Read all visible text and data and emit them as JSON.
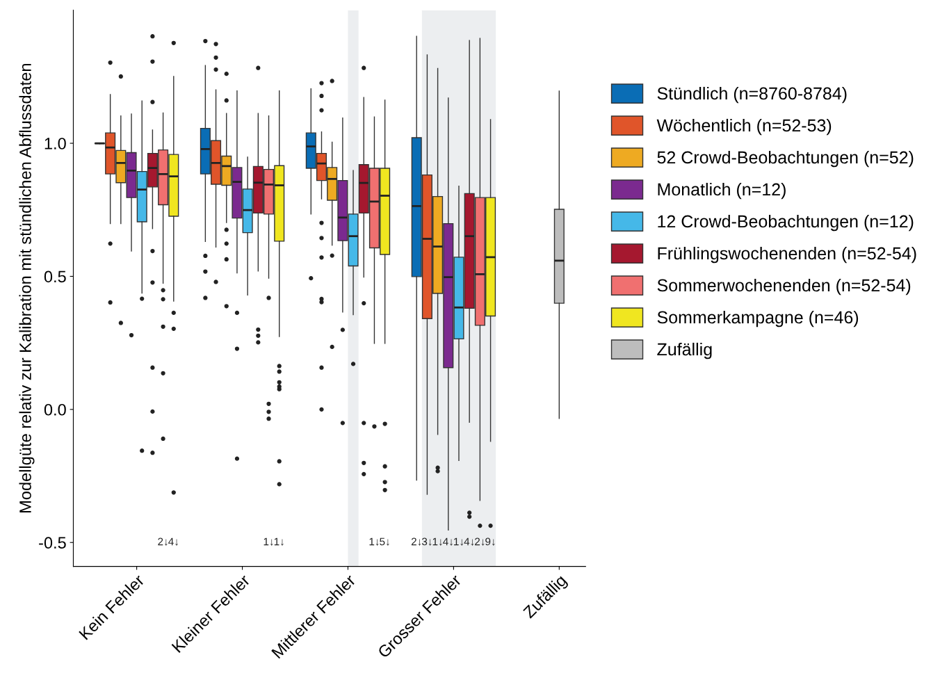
{
  "chart_data": {
    "type": "box",
    "ylabel": "Modellgüte relativ zur Kalibration mit stündlichen Abflussdaten",
    "categories": [
      "Kein Fehler",
      "Kleiner Fehler",
      "Mittlerer Fehler",
      "Grosser Fehler",
      "Zufällig"
    ],
    "ylim": [
      -0.59,
      1.5
    ],
    "yticks": [
      {
        "value": -0.5,
        "label": "-0.5"
      },
      {
        "value": 0,
        "label": "0.0"
      },
      {
        "value": 0.5,
        "label": "0.5"
      },
      {
        "value": 1,
        "label": "1.0"
      }
    ],
    "grid": false,
    "legend": "right",
    "series": [
      {
        "name": "Stündlich (n=8760-8784)",
        "color": "#0a6db5",
        "boxes": [
          {
            "low": 0.998,
            "q1": 0.999,
            "median": 1.0,
            "q3": 1.0,
            "high": 1.0
          },
          {
            "low": 0.631,
            "q1": 0.885,
            "median": 0.978,
            "q3": 1.056,
            "high": 1.292,
            "outliers": [
              1.384,
              0.577,
              0.518,
              0.419
            ]
          },
          {
            "low": 0.734,
            "q1": 0.906,
            "median": 0.988,
            "q3": 1.039,
            "high": 1.205,
            "outliers": [
              0.493
            ]
          },
          {
            "low": -0.266,
            "q1": 0.499,
            "median": 0.764,
            "q3": 1.021,
            "high": 1.402
          },
          null
        ],
        "value_labels": [
          null,
          null,
          null,
          "2↓",
          null
        ]
      },
      {
        "name": "Wöchentlich (n=52-53)",
        "color": "#e0552a",
        "boxes": [
          {
            "low": 0.698,
            "q1": 0.885,
            "median": 0.984,
            "q3": 1.039,
            "high": 1.183,
            "outliers": [
              1.303,
              0.623,
              0.402
            ]
          },
          {
            "low": 0.61,
            "q1": 0.846,
            "median": 0.926,
            "q3": 1.01,
            "high": 1.201,
            "outliers": [
              1.373,
              1.322,
              1.277,
              0.479
            ]
          },
          {
            "low": 0.791,
            "q1": 0.86,
            "median": 0.924,
            "q3": 0.962,
            "high": 1.043,
            "outliers": [
              1.226,
              1.178,
              1.124,
              0.701,
              0.644,
              0.571,
              0.415,
              0.403,
              0.157,
              0.0
            ]
          },
          {
            "low": -0.319,
            "q1": 0.341,
            "median": 0.641,
            "q3": 0.881,
            "high": 1.332
          },
          null
        ],
        "value_labels": [
          null,
          null,
          null,
          "3↓",
          null
        ]
      },
      {
        "name": "52 Crowd-Beobachtungen (n=52)",
        "color": "#eeaa22",
        "boxes": [
          {
            "low": 0.698,
            "q1": 0.852,
            "median": 0.926,
            "q3": 0.973,
            "high": 1.103,
            "outliers": [
              1.251,
              0.325
            ]
          },
          {
            "low": 0.702,
            "q1": 0.842,
            "median": 0.914,
            "q3": 0.952,
            "high": 1.112,
            "outliers": [
              1.261,
              1.161,
              0.675,
              0.623,
              0.564,
              0.388
            ]
          },
          {
            "low": 0.617,
            "q1": 0.786,
            "median": 0.866,
            "q3": 0.909,
            "high": 1.004,
            "outliers": [
              1.234,
              0.578,
              0.235
            ]
          },
          {
            "low": -0.094,
            "q1": 0.436,
            "median": 0.612,
            "q3": 0.8,
            "high": 1.281,
            "outliers": [
              -0.219,
              -0.232
            ]
          },
          null
        ],
        "value_labels": [
          null,
          null,
          null,
          "1↓",
          null
        ]
      },
      {
        "name": "Monatlich (n=12)",
        "color": "#7b2a8f",
        "boxes": [
          {
            "low": 0.595,
            "q1": 0.796,
            "median": 0.897,
            "q3": 0.965,
            "high": 1.11,
            "outliers": [
              0.279
            ]
          },
          {
            "low": 0.513,
            "q1": 0.719,
            "median": 0.855,
            "q3": 0.909,
            "high": 1.197,
            "outliers": [
              0.363,
              0.228,
              -0.185
            ]
          },
          {
            "low": 0.366,
            "q1": 0.634,
            "median": 0.721,
            "q3": 0.86,
            "high": 1.095,
            "outliers": [
              0.299,
              -0.051
            ]
          },
          {
            "low": -0.453,
            "q1": 0.157,
            "median": 0.497,
            "q3": 0.698,
            "high": 1.17
          },
          null
        ],
        "value_labels": [
          null,
          null,
          null,
          "4↓",
          null
        ]
      },
      {
        "name": "12 Crowd-Beobachtungen (n=12)",
        "color": "#45b8e8",
        "boxes": [
          {
            "low": 0.437,
            "q1": 0.705,
            "median": 0.826,
            "q3": 0.894,
            "high": 1.159,
            "outliers": [
              0.416,
              -0.155
            ]
          },
          {
            "low": 0.43,
            "q1": 0.664,
            "median": 0.749,
            "q3": 0.828,
            "high": 0.948
          },
          {
            "low": 0.356,
            "q1": 0.539,
            "median": 0.651,
            "q3": 0.734,
            "high": 0.898,
            "outliers": [
              0.171
            ]
          },
          {
            "low": -0.192,
            "q1": 0.265,
            "median": 0.383,
            "q3": 0.572,
            "high": 0.839
          },
          null
        ],
        "value_labels": [
          null,
          null,
          null,
          "1↓",
          null
        ]
      },
      {
        "name": "Frühlingswochenenden (n=52-54)",
        "color": "#a5182f",
        "boxes": [
          {
            "low": 0.679,
            "q1": 0.836,
            "median": 0.907,
            "q3": 0.962,
            "high": 1.05,
            "outliers": [
              1.402,
              1.307,
              1.155,
              0.595,
              0.477,
              0.157,
              -0.008,
              -0.163
            ]
          },
          {
            "low": 0.52,
            "q1": 0.738,
            "median": 0.852,
            "q3": 0.913,
            "high": 1.112,
            "outliers": [
              1.283,
              0.3,
              0.277,
              0.252
            ]
          },
          {
            "low": 0.497,
            "q1": 0.738,
            "median": 0.851,
            "q3": 0.92,
            "high": 1.172,
            "outliers": [
              1.283,
              0.399,
              -0.051,
              -0.201,
              -0.243
            ]
          },
          {
            "low": -0.048,
            "q1": 0.38,
            "median": 0.651,
            "q3": 0.811,
            "high": 1.386,
            "outliers": [
              -0.388,
              -0.403
            ]
          },
          null
        ],
        "value_labels": [
          null,
          null,
          null,
          "4↓",
          null
        ]
      },
      {
        "name": "Sommerwochenenden (n=52-54)",
        "color": "#f07070",
        "boxes": [
          {
            "low": 0.474,
            "q1": 0.769,
            "median": 0.884,
            "q3": 0.975,
            "high": 1.114,
            "outliers": [
              0.448,
              0.414,
              0.311,
              0.136,
              -0.11
            ]
          },
          {
            "low": 0.493,
            "q1": 0.734,
            "median": 0.845,
            "q3": 0.902,
            "high": 1.103,
            "outliers": [
              0.419,
              0.021,
              -0.009,
              -0.035
            ]
          },
          {
            "low": 0.248,
            "q1": 0.607,
            "median": 0.781,
            "q3": 0.906,
            "high": 1.099,
            "outliers": [
              -0.064
            ]
          },
          {
            "low": -0.342,
            "q1": 0.316,
            "median": 0.508,
            "q3": 0.796,
            "high": 1.394,
            "outliers": [
              -0.437
            ]
          },
          null
        ],
        "value_labels": [
          "2↓",
          "1↓",
          "1↓",
          "2↓",
          null
        ]
      },
      {
        "name": "Sommerkampagne (n=46)",
        "color": "#f0e620",
        "boxes": [
          {
            "low": 0.407,
            "q1": 0.726,
            "median": 0.876,
            "q3": 0.958,
            "high": 1.251,
            "outliers": [
              1.377,
              0.363,
              0.303,
              -0.312
            ]
          },
          {
            "low": 0.274,
            "q1": 0.632,
            "median": 0.842,
            "q3": 0.916,
            "high": 1.197,
            "outliers": [
              0.163,
              0.142,
              0.102,
              0.086,
              0.076,
              -0.195,
              -0.281
            ]
          },
          {
            "low": 0.248,
            "q1": 0.582,
            "median": 0.803,
            "q3": 0.906,
            "high": 1.162,
            "outliers": [
              -0.054,
              -0.214,
              -0.273,
              -0.303
            ]
          },
          {
            "low": -0.12,
            "q1": 0.351,
            "median": 0.572,
            "q3": 0.796,
            "high": 1.089,
            "outliers": [
              -0.437
            ]
          },
          null
        ],
        "value_labels": [
          "4↓",
          "1↓",
          "5↓",
          "9↓",
          null
        ]
      },
      {
        "name": "Zufällig",
        "color": "#bdbdbd",
        "boxes": [
          null,
          null,
          null,
          null,
          {
            "low": -0.034,
            "q1": 0.399,
            "median": 0.559,
            "q3": 0.752,
            "high": 1.196
          }
        ]
      }
    ]
  }
}
